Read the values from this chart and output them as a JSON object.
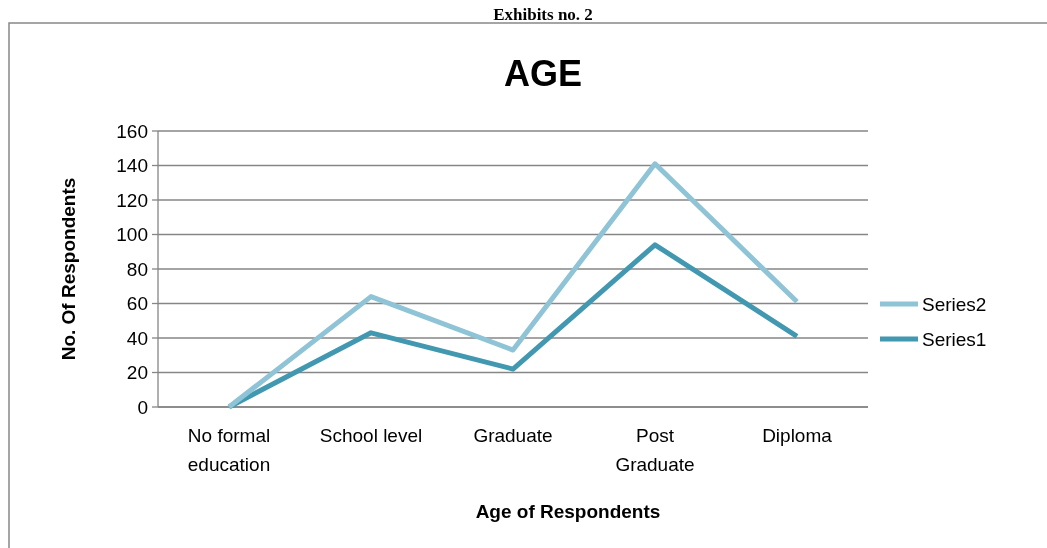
{
  "chart_data": {
    "type": "line",
    "title": "AGE",
    "xlabel": "Age of Respondents",
    "ylabel": "No. Of Respondents",
    "annotations": [
      "Exhibits no. 2"
    ],
    "categories": [
      "No formal education",
      "School level",
      "Graduate",
      "Post Graduate",
      "Diploma"
    ],
    "series": [
      {
        "name": "Series1",
        "color": "#4198b0",
        "values": [
          0,
          43,
          22,
          94,
          41
        ]
      },
      {
        "name": "Series2",
        "color": "#8fc3d6",
        "values": [
          0,
          64,
          33,
          141,
          61
        ]
      }
    ],
    "ylim": [
      0,
      160
    ],
    "yticks": [
      0,
      20,
      40,
      60,
      80,
      100,
      120,
      140,
      160
    ],
    "grid": "y",
    "legend": "right",
    "marker": "none",
    "line_style": "solid"
  }
}
